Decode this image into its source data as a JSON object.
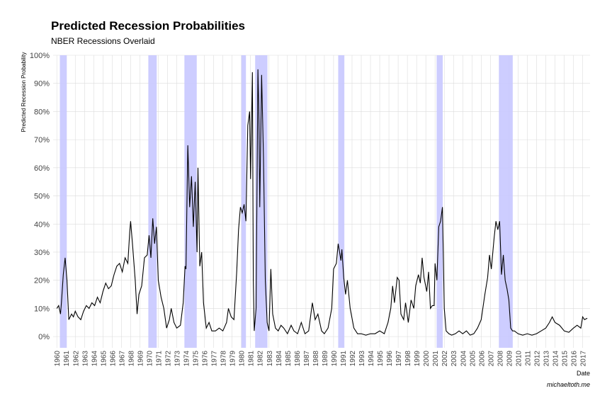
{
  "chart_data": {
    "type": "line",
    "title": "Predicted Recession Probabilities",
    "subtitle": "NBER Recessions Overlaid",
    "y_label": "Predicted Recession Probability",
    "x_label": "Date",
    "caption": "michaeltoth.me",
    "color": "#000000",
    "recession_color": "#c8c8ff",
    "grid": true,
    "xlim": [
      1959.6,
      2017.8
    ],
    "ylim": [
      -4,
      100
    ],
    "xticks": [
      1960,
      1961,
      1962,
      1963,
      1964,
      1965,
      1966,
      1967,
      1968,
      1969,
      1970,
      1971,
      1972,
      1973,
      1974,
      1975,
      1976,
      1977,
      1978,
      1979,
      1980,
      1981,
      1982,
      1983,
      1984,
      1985,
      1986,
      1987,
      1988,
      1989,
      1990,
      1991,
      1992,
      1993,
      1994,
      1995,
      1996,
      1997,
      1998,
      1999,
      2000,
      2001,
      2002,
      2003,
      2004,
      2005,
      2006,
      2007,
      2008,
      2009,
      2010,
      2011,
      2012,
      2013,
      2014,
      2015,
      2016,
      2017
    ],
    "yticks": [
      {
        "value": 0,
        "label": "0%"
      },
      {
        "value": 10,
        "label": "10%"
      },
      {
        "value": 20,
        "label": "20%"
      },
      {
        "value": 30,
        "label": "30%"
      },
      {
        "value": 40,
        "label": "40%"
      },
      {
        "value": 50,
        "label": "50%"
      },
      {
        "value": 60,
        "label": "60%"
      },
      {
        "value": 70,
        "label": "70%"
      },
      {
        "value": 80,
        "label": "80%"
      },
      {
        "value": 90,
        "label": "90%"
      },
      {
        "value": 100,
        "label": "100%"
      }
    ],
    "recessions": [
      [
        1960.33,
        1961.08
      ],
      [
        1969.92,
        1970.83
      ],
      [
        1973.83,
        1975.17
      ],
      [
        1980.0,
        1980.5
      ],
      [
        1981.5,
        1982.83
      ],
      [
        1990.5,
        1991.17
      ],
      [
        2001.17,
        2001.83
      ],
      [
        2007.92,
        2009.42
      ]
    ],
    "x": [
      1960.0,
      1960.2,
      1960.4,
      1960.5,
      1960.7,
      1960.9,
      1961.1,
      1961.3,
      1961.6,
      1961.8,
      1962.0,
      1962.3,
      1962.6,
      1962.9,
      1963.2,
      1963.5,
      1963.8,
      1964.1,
      1964.4,
      1964.7,
      1965.0,
      1965.3,
      1965.6,
      1965.9,
      1966.2,
      1966.5,
      1966.8,
      1967.1,
      1967.4,
      1967.7,
      1967.9,
      1968.0,
      1968.2,
      1968.5,
      1968.7,
      1968.9,
      1969.2,
      1969.5,
      1969.8,
      1970.0,
      1970.2,
      1970.4,
      1970.6,
      1970.8,
      1971.0,
      1971.3,
      1971.6,
      1971.9,
      1972.2,
      1972.4,
      1972.7,
      1973.0,
      1973.4,
      1973.7,
      1973.9,
      1974.0,
      1974.2,
      1974.4,
      1974.6,
      1974.8,
      1975.0,
      1975.2,
      1975.3,
      1975.5,
      1975.7,
      1975.9,
      1976.2,
      1976.5,
      1976.8,
      1977.2,
      1977.6,
      1978.0,
      1978.4,
      1978.6,
      1978.9,
      1979.2,
      1979.5,
      1979.7,
      1979.9,
      1980.1,
      1980.3,
      1980.5,
      1980.7,
      1980.9,
      1981.0,
      1981.2,
      1981.3,
      1981.4,
      1981.6,
      1981.8,
      1981.9,
      1982.0,
      1982.2,
      1982.4,
      1982.6,
      1982.8,
      1983.0,
      1983.2,
      1983.4,
      1983.7,
      1984.0,
      1984.3,
      1984.6,
      1985.0,
      1985.4,
      1985.7,
      1986.1,
      1986.5,
      1986.9,
      1987.3,
      1987.7,
      1988.0,
      1988.3,
      1988.7,
      1989.0,
      1989.4,
      1989.8,
      1990.0,
      1990.3,
      1990.5,
      1990.8,
      1990.9,
      1991.1,
      1991.3,
      1991.5,
      1991.8,
      1992.2,
      1992.6,
      1993.0,
      1993.5,
      1994.0,
      1994.5,
      1995.0,
      1995.5,
      1995.9,
      1996.2,
      1996.4,
      1996.6,
      1996.9,
      1997.1,
      1997.3,
      1997.6,
      1997.8,
      1998.1,
      1998.4,
      1998.7,
      1998.9,
      1999.2,
      1999.4,
      1999.6,
      1999.8,
      2000.1,
      2000.3,
      2000.5,
      2000.7,
      2000.9,
      2001.0,
      2001.2,
      2001.4,
      2001.6,
      2001.8,
      2002.0,
      2002.2,
      2002.5,
      2002.8,
      2003.2,
      2003.6,
      2004.0,
      2004.4,
      2004.8,
      2005.2,
      2005.6,
      2006.0,
      2006.4,
      2006.7,
      2006.9,
      2007.1,
      2007.4,
      2007.6,
      2007.8,
      2008.0,
      2008.2,
      2008.4,
      2008.6,
      2008.8,
      2009.0,
      2009.2,
      2009.4,
      2009.6,
      2010.0,
      2010.5,
      2011.0,
      2011.5,
      2012.0,
      2012.5,
      2013.0,
      2013.4,
      2013.7,
      2014.0,
      2014.5,
      2015.0,
      2015.5,
      2016.0,
      2016.4,
      2016.8,
      2017.0,
      2017.2,
      2017.5
    ],
    "values": [
      10,
      11,
      8,
      12,
      22,
      28,
      20,
      6,
      8,
      7,
      9,
      7,
      6,
      9,
      11,
      10,
      12,
      11,
      14,
      12,
      16,
      19,
      17,
      18,
      22,
      25,
      26,
      23,
      28,
      26,
      37,
      41,
      33,
      20,
      8,
      15,
      18,
      28,
      29,
      36,
      28,
      42,
      33,
      39,
      20,
      14,
      10,
      3,
      6,
      10,
      5,
      3,
      4,
      12,
      25,
      24,
      68,
      46,
      57,
      39,
      55,
      30,
      60,
      25,
      30,
      12,
      3,
      5,
      2,
      2,
      3,
      2,
      5,
      10,
      7,
      6,
      23,
      38,
      46,
      44,
      47,
      41,
      75,
      80,
      56,
      94,
      20,
      2,
      10,
      95,
      80,
      46,
      93,
      64,
      20,
      5,
      2,
      24,
      8,
      3,
      2,
      4,
      3,
      1,
      4,
      2,
      1,
      5,
      1,
      2,
      12,
      6,
      8,
      2,
      1,
      3,
      10,
      24,
      26,
      33,
      27,
      31,
      21,
      15,
      20,
      10,
      3,
      1,
      1,
      0.5,
      1,
      1,
      2,
      1,
      5,
      10,
      18,
      12,
      21,
      20,
      8,
      6,
      12,
      5,
      13,
      10,
      18,
      22,
      19,
      28,
      21,
      16,
      23,
      10,
      11,
      11,
      26,
      20,
      39,
      41,
      46,
      10,
      2,
      1,
      0.5,
      1,
      2,
      1,
      2,
      0.5,
      1,
      3,
      6,
      15,
      21,
      29,
      24,
      35,
      41,
      38,
      41,
      22,
      29,
      20,
      17,
      13,
      3,
      2,
      2,
      1,
      0.5,
      1,
      0.5,
      1,
      2,
      3,
      5,
      7,
      5,
      4,
      2,
      1.5,
      3,
      4,
      3,
      7,
      6,
      6.5
    ]
  }
}
